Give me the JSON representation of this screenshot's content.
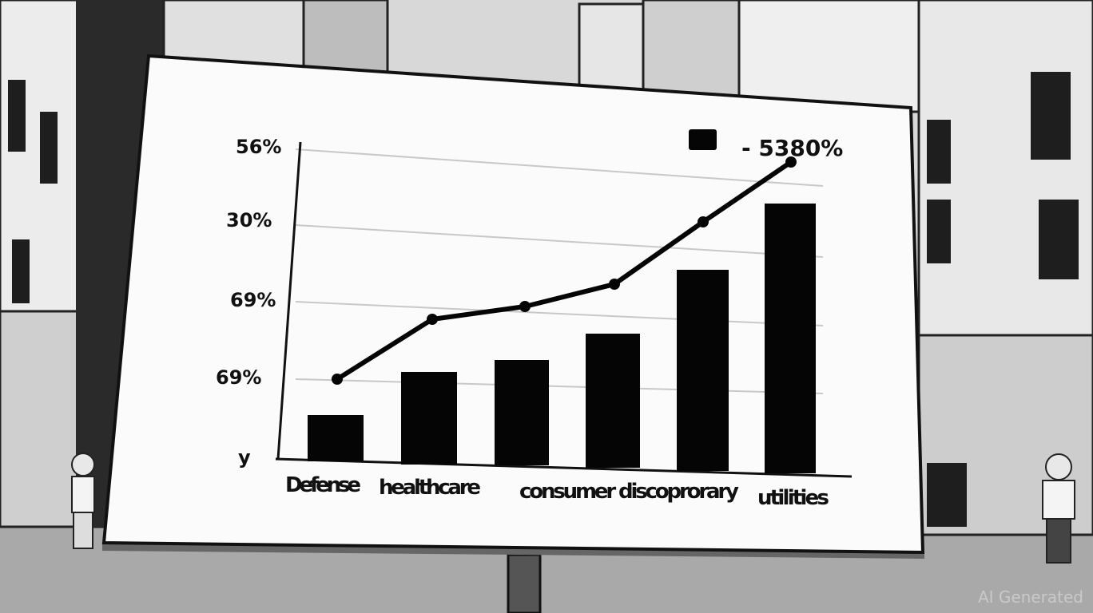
{
  "billboard": {
    "y_axis_labels": [
      "56%",
      "30%",
      "69%",
      "69%",
      "y"
    ],
    "legend_text": "- 5380%",
    "category_labels": [
      "Defense",
      "healthcare",
      "consumer discoprorary",
      "utilities"
    ]
  },
  "watermark": "AI Generated"
}
